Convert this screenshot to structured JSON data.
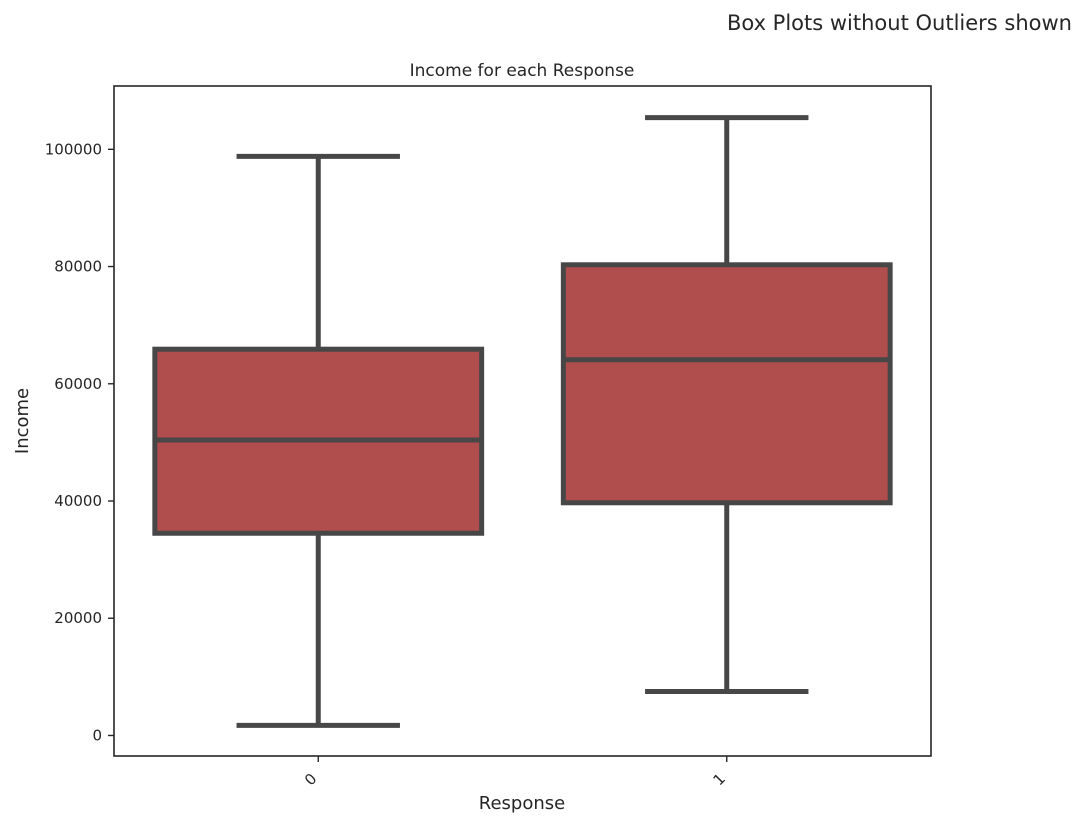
{
  "figure": {
    "suptitle": "Box Plots without Outliers shown"
  },
  "chart_data": {
    "type": "box",
    "title": "Income for each Response",
    "xlabel": "Response",
    "ylabel": "Income",
    "categories": [
      "0",
      "1"
    ],
    "boxes": [
      {
        "category": "0",
        "whisker_low": 1730,
        "q1": 34500,
        "median": 50400,
        "q3": 65900,
        "whisker_high": 98800
      },
      {
        "category": "1",
        "whisker_low": 7500,
        "q1": 39700,
        "median": 64100,
        "q3": 80300,
        "whisker_high": 105400
      }
    ],
    "yticks": [
      0,
      20000,
      40000,
      60000,
      80000,
      100000
    ],
    "ytick_labels": [
      "0",
      "20000",
      "40000",
      "60000",
      "80000",
      "100000"
    ],
    "ylim": [
      -3500,
      110800
    ],
    "grid": false,
    "outliers_shown": false,
    "colors": {
      "box_fill": "#B04E4D",
      "box_line": "#474747",
      "axes_edge": "#262626",
      "text": "#262626"
    }
  }
}
